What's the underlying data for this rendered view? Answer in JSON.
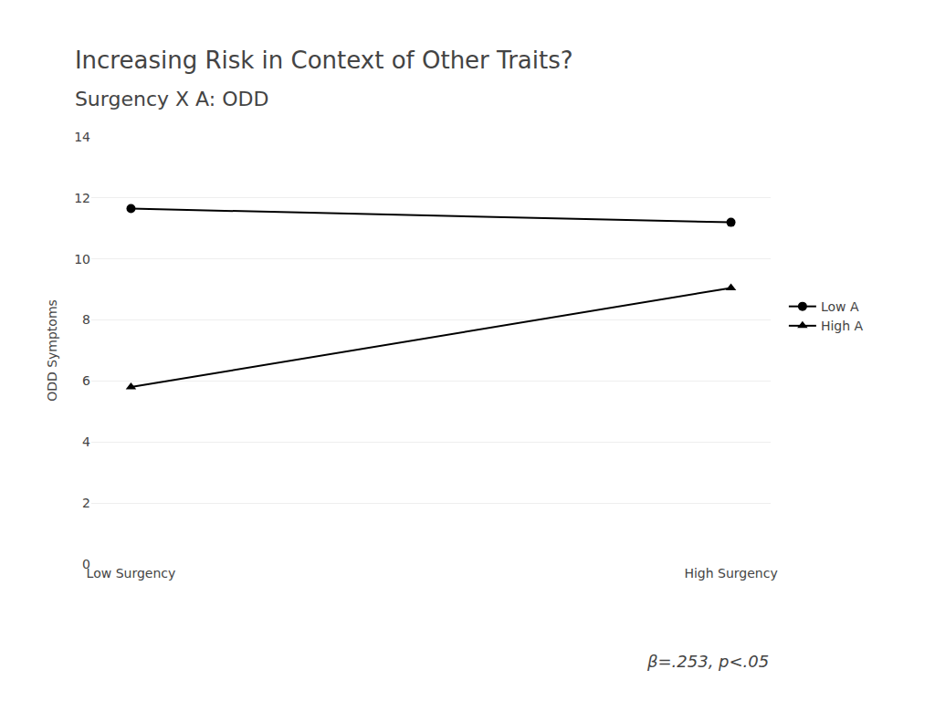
{
  "chart_data": {
    "type": "line",
    "title": "Increasing Risk in Context of Other Traits?",
    "subtitle": "Surgency X A: ODD",
    "ylabel": "ODD Symptoms",
    "categories": [
      "Low Surgency",
      "High Surgency"
    ],
    "series": [
      {
        "name": "Low A",
        "color": "#000000",
        "marker": "circle",
        "values": [
          11.65,
          11.2
        ]
      },
      {
        "name": "High A",
        "color": "#000000",
        "marker": "triangle-up",
        "values": [
          5.8,
          9.05
        ]
      }
    ],
    "ylim": [
      0,
      14
    ],
    "yticks": [
      0,
      2,
      4,
      6,
      8,
      10,
      12,
      14
    ],
    "grid": true,
    "legend": "right",
    "annotations": [
      "β=.253, p<.05"
    ]
  }
}
